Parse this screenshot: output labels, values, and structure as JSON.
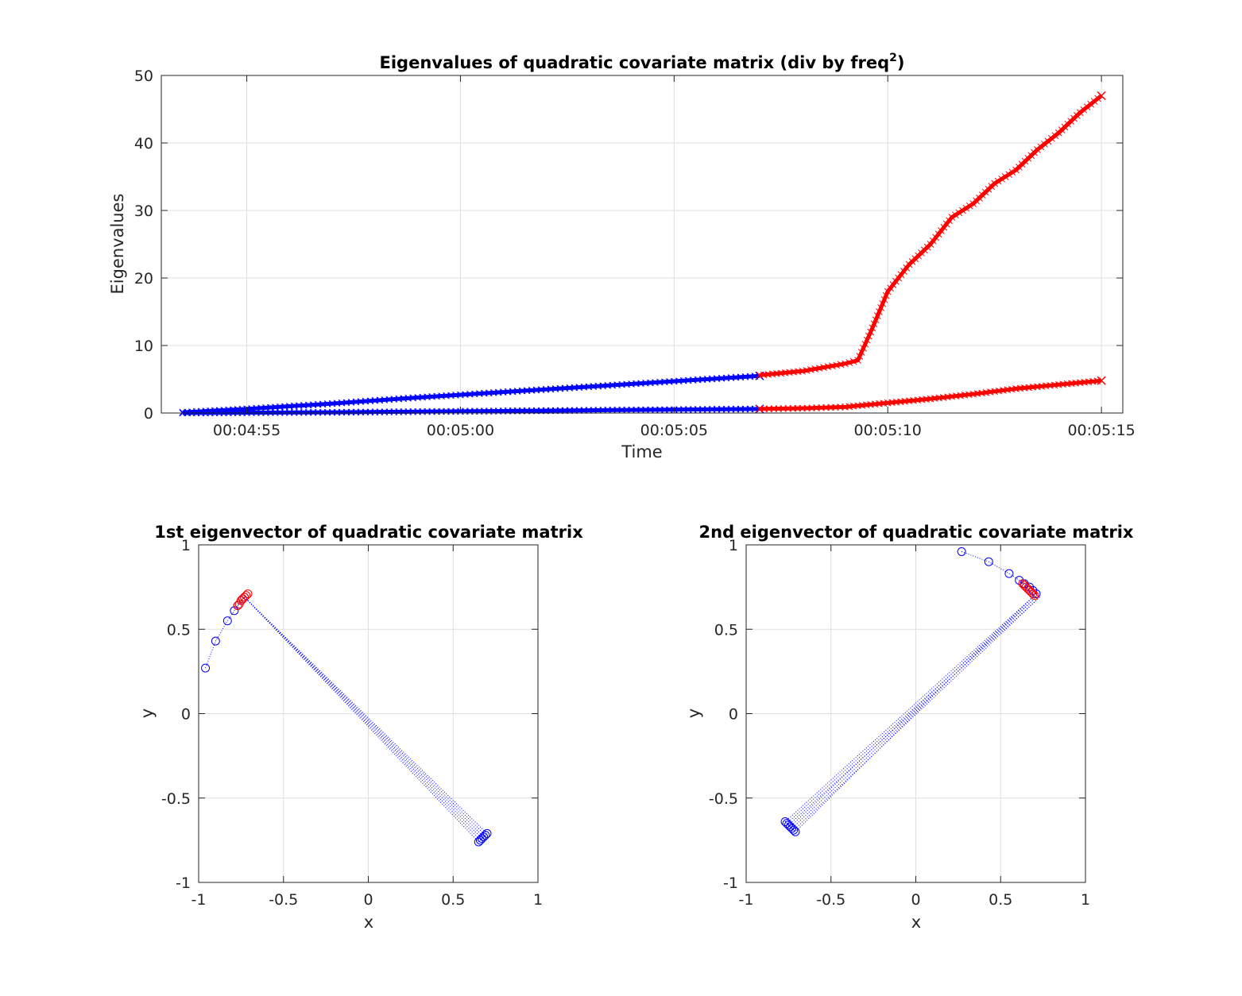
{
  "colors": {
    "blue": "#0000ff",
    "red": "#ff0000",
    "grid": "#dfdfdf",
    "axis": "#262626"
  },
  "chart_data": [
    {
      "type": "scatter",
      "marker": "x",
      "title": "Eigenvalues of quadratic covariate matrix (div by freq",
      "title_superscript": "2",
      "title_tail": ")",
      "xlabel": "Time",
      "ylabel": "Eigenvalues",
      "x_unit": "seconds (elapsed)",
      "xlim": [
        293,
        315.5
      ],
      "ylim": [
        0,
        50
      ],
      "xticks": [
        295,
        300,
        305,
        310,
        315
      ],
      "xtick_labels": [
        "00:04:55",
        "00:05:00",
        "00:05:05",
        "00:05:10",
        "00:05:15"
      ],
      "yticks": [
        0,
        10,
        20,
        30,
        40,
        50
      ],
      "ytick_labels": [
        "0",
        "10",
        "20",
        "30",
        "40",
        "50"
      ],
      "grid": true,
      "series": [
        {
          "color": "blue",
          "x": [
            293.5,
            295,
            297,
            299,
            301,
            303,
            305,
            307
          ],
          "y": [
            0.1,
            0.6,
            1.4,
            2.3,
            3.1,
            3.9,
            4.7,
            5.5
          ]
        },
        {
          "color": "blue",
          "x": [
            293.5,
            295,
            297,
            299,
            301,
            303,
            305,
            307
          ],
          "y": [
            0,
            0.05,
            0.1,
            0.2,
            0.3,
            0.4,
            0.5,
            0.6
          ]
        },
        {
          "color": "red",
          "x": [
            307,
            308,
            309,
            309.3,
            309.6,
            310,
            310.5,
            311,
            311.5,
            312,
            312.5,
            313,
            313.5,
            314,
            314.5,
            315
          ],
          "y": [
            5.6,
            6.2,
            7.3,
            7.8,
            12,
            18,
            22,
            25,
            29,
            31,
            34,
            36,
            39,
            41.5,
            44.5,
            47
          ]
        },
        {
          "color": "red",
          "x": [
            307,
            308,
            309,
            310,
            311,
            312,
            313,
            314,
            315
          ],
          "y": [
            0.6,
            0.7,
            0.9,
            1.5,
            2.1,
            2.8,
            3.6,
            4.2,
            4.8
          ]
        }
      ]
    },
    {
      "type": "scatter",
      "marker": "o",
      "title": "1st eigenvector of quadratic covariate matrix",
      "xlabel": "x",
      "ylabel": "y",
      "xlim": [
        -1,
        1
      ],
      "ylim": [
        -1,
        1
      ],
      "xticks": [
        -1,
        -0.5,
        0,
        0.5,
        1
      ],
      "xtick_labels": [
        "-1",
        "-0.5",
        "0",
        "0.5",
        "1"
      ],
      "yticks": [
        -1,
        -0.5,
        0,
        0.5,
        1
      ],
      "ytick_labels": [
        "-1",
        "-0.5",
        "0",
        "0.5",
        "1"
      ],
      "grid": true,
      "series": [
        {
          "color": "blue",
          "x": [
            -0.96,
            -0.9,
            -0.83,
            -0.79,
            -0.77,
            -0.75,
            -0.74,
            -0.73
          ],
          "y": [
            0.27,
            0.43,
            0.55,
            0.61,
            0.64,
            0.67,
            0.68,
            0.69
          ]
        },
        {
          "color": "blue",
          "x": [
            0.65,
            0.66,
            0.67,
            0.68,
            0.69,
            0.7
          ],
          "y": [
            -0.76,
            -0.75,
            -0.74,
            -0.73,
            -0.72,
            -0.71
          ]
        },
        {
          "color": "red",
          "x": [
            -0.77,
            -0.76,
            -0.75,
            -0.74,
            -0.73,
            -0.72,
            -0.71
          ],
          "y": [
            0.64,
            0.65,
            0.67,
            0.68,
            0.69,
            0.7,
            0.71
          ]
        }
      ]
    },
    {
      "type": "scatter",
      "marker": "o",
      "title": "2nd eigenvector of quadratic covariate matrix",
      "xlabel": "x",
      "ylabel": "y",
      "xlim": [
        -1,
        1
      ],
      "ylim": [
        -1,
        1
      ],
      "xticks": [
        -1,
        -0.5,
        0,
        0.5,
        1
      ],
      "xtick_labels": [
        "-1",
        "-0.5",
        "0",
        "0.5",
        "1"
      ],
      "yticks": [
        -1,
        -0.5,
        0,
        0.5,
        1
      ],
      "ytick_labels": [
        "-1",
        "-0.5",
        "0",
        "0.5",
        "1"
      ],
      "grid": true,
      "series": [
        {
          "color": "blue",
          "x": [
            0.27,
            0.43,
            0.55,
            0.61,
            0.64,
            0.67,
            0.69,
            0.71
          ],
          "y": [
            0.96,
            0.9,
            0.83,
            0.79,
            0.77,
            0.75,
            0.73,
            0.71
          ]
        },
        {
          "color": "blue",
          "x": [
            -0.77,
            -0.76,
            -0.75,
            -0.74,
            -0.73,
            -0.72,
            -0.71
          ],
          "y": [
            -0.64,
            -0.65,
            -0.66,
            -0.67,
            -0.68,
            -0.69,
            -0.7
          ]
        },
        {
          "color": "red",
          "x": [
            0.63,
            0.64,
            0.65,
            0.66,
            0.67,
            0.68,
            0.69,
            0.7
          ],
          "y": [
            0.77,
            0.76,
            0.75,
            0.74,
            0.73,
            0.72,
            0.71,
            0.7
          ]
        }
      ]
    }
  ]
}
